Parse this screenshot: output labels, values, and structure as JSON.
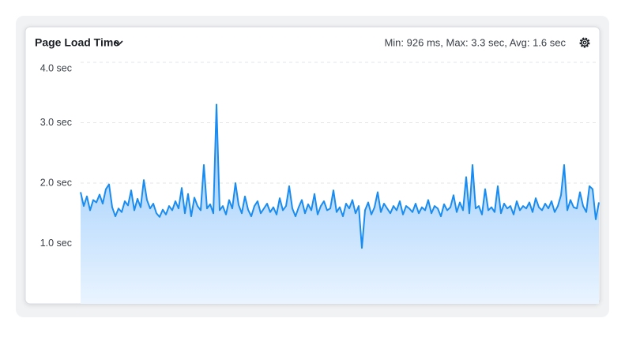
{
  "chart_data": {
    "type": "area",
    "title": "Page Load Time",
    "summary": "Min: 926 ms, Max: 3.3 sec, Avg: 1.6 sec",
    "color": "#1a8cf0",
    "ylim": [
      0,
      4
    ],
    "yticks": [
      {
        "value": 1,
        "label": "1.0 sec"
      },
      {
        "value": 2,
        "label": "2.0 sec"
      },
      {
        "value": 3,
        "label": "3.0 sec"
      },
      {
        "value": 4,
        "label": "4.0 sec"
      }
    ],
    "grid": true,
    "values": [
      1.85,
      1.62,
      1.78,
      1.55,
      1.72,
      1.68,
      1.81,
      1.66,
      1.9,
      1.98,
      1.6,
      1.45,
      1.58,
      1.52,
      1.7,
      1.63,
      1.88,
      1.55,
      1.74,
      1.6,
      2.05,
      1.72,
      1.58,
      1.66,
      1.5,
      1.44,
      1.56,
      1.48,
      1.62,
      1.55,
      1.7,
      1.58,
      1.92,
      1.5,
      1.82,
      1.45,
      1.76,
      1.62,
      1.55,
      2.3,
      1.58,
      1.65,
      1.5,
      3.3,
      1.55,
      1.62,
      1.48,
      1.72,
      1.58,
      2.0,
      1.64,
      1.5,
      1.78,
      1.56,
      1.45,
      1.62,
      1.7,
      1.5,
      1.58,
      1.66,
      1.52,
      1.6,
      1.48,
      1.75,
      1.55,
      1.62,
      1.95,
      1.58,
      1.45,
      1.6,
      1.72,
      1.5,
      1.65,
      1.55,
      1.82,
      1.48,
      1.62,
      1.7,
      1.55,
      1.58,
      1.88,
      1.52,
      1.6,
      1.45,
      1.66,
      1.58,
      1.72,
      1.5,
      1.62,
      0.926,
      1.55,
      1.68,
      1.48,
      1.6,
      1.85,
      1.52,
      1.66,
      1.58,
      1.5,
      1.62,
      1.55,
      1.7,
      1.48,
      1.62,
      1.58,
      1.52,
      1.66,
      1.5,
      1.6,
      1.55,
      1.72,
      1.5,
      1.62,
      1.58,
      1.45,
      1.65,
      1.55,
      1.6,
      1.8,
      1.52,
      1.68,
      1.55,
      2.1,
      1.5,
      2.3,
      1.58,
      1.62,
      1.48,
      1.9,
      1.55,
      1.6,
      1.52,
      1.95,
      1.5,
      1.66,
      1.58,
      1.62,
      1.48,
      1.7,
      1.55,
      1.62,
      1.58,
      1.68,
      1.52,
      1.75,
      1.6,
      1.55,
      1.66,
      1.58,
      1.7,
      1.52,
      1.62,
      1.8,
      2.3,
      1.55,
      1.72,
      1.6,
      1.58,
      1.85,
      1.62,
      1.52,
      1.95,
      1.9,
      1.4,
      1.68
    ]
  }
}
